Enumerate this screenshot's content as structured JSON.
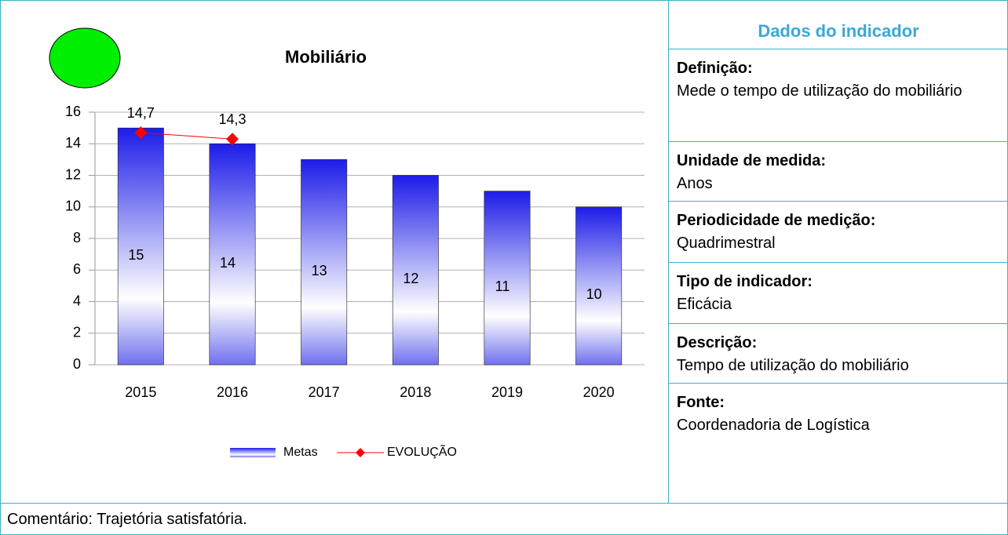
{
  "chart_data": {
    "type": "bar",
    "title": "Mobiliário",
    "categories": [
      "2015",
      "2016",
      "2017",
      "2018",
      "2019",
      "2020"
    ],
    "series": [
      {
        "name": "Metas",
        "type": "bar",
        "color": "#1c1ce8",
        "values": [
          15,
          14,
          13,
          12,
          11,
          10
        ]
      },
      {
        "name": "EVOLUÇÃO",
        "type": "line",
        "color": "#ff0000",
        "values": [
          14.7,
          14.3,
          null,
          null,
          null,
          null
        ],
        "value_labels": [
          "14,7",
          "14,3",
          null,
          null,
          null,
          null
        ]
      }
    ],
    "ylim": [
      0,
      16
    ],
    "yticks": [
      0,
      2,
      4,
      6,
      8,
      10,
      12,
      14,
      16
    ],
    "grid": true,
    "legend": "bottom"
  },
  "status_color": "#00ee00",
  "panel": {
    "title": "Dados do indicador",
    "items": [
      {
        "label": "Definição:",
        "text": "Mede o tempo de utilização do mobiliário"
      },
      {
        "label": "Unidade de medida:",
        "text": "Anos"
      },
      {
        "label": "Periodicidade de medição:",
        "text": "Quadrimestral"
      },
      {
        "label": "Tipo de indicador:",
        "text": "Eficácia"
      },
      {
        "label": "Descrição:",
        "text": "Tempo de utilização do mobiliário"
      },
      {
        "label": "Fonte:",
        "text": "Coordenadoria de Logística"
      }
    ]
  },
  "comment": "Comentário: Trajetória satisfatória."
}
